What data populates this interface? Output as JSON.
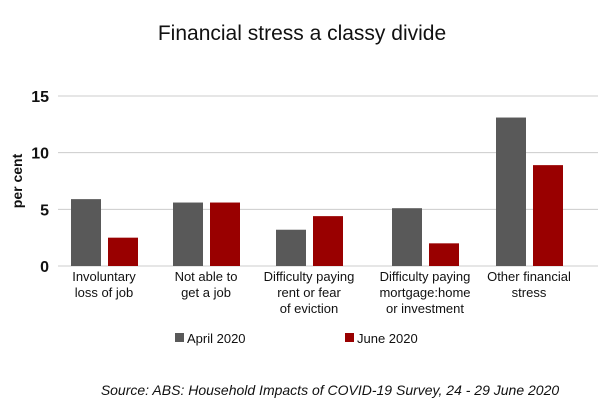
{
  "chart_data": {
    "type": "bar",
    "title": "Financial stress a classy divide",
    "ylabel": "per cent",
    "xlabel": "",
    "ylim": [
      0,
      15
    ],
    "yticks": [
      0,
      5,
      10,
      15
    ],
    "grid": true,
    "legend_position": "bottom",
    "categories": [
      [
        "Involuntary",
        "loss of job"
      ],
      [
        "Not able to",
        "get a job"
      ],
      [
        "Difficulty paying",
        "rent  or fear",
        "of eviction"
      ],
      [
        "Difficulty paying",
        "mortgage:home",
        "or investment"
      ],
      [
        "Other financial",
        "stress"
      ]
    ],
    "series": [
      {
        "name": "April 2020",
        "color": "#595959",
        "values": [
          5.9,
          5.6,
          3.2,
          5.1,
          13.1
        ]
      },
      {
        "name": "June 2020",
        "color": "#990000",
        "values": [
          2.5,
          5.6,
          4.4,
          2.0,
          8.9
        ]
      }
    ],
    "source": "Source: ABS: Household Impacts of COVID-19 Survey, 24 - 29 June 2020"
  }
}
